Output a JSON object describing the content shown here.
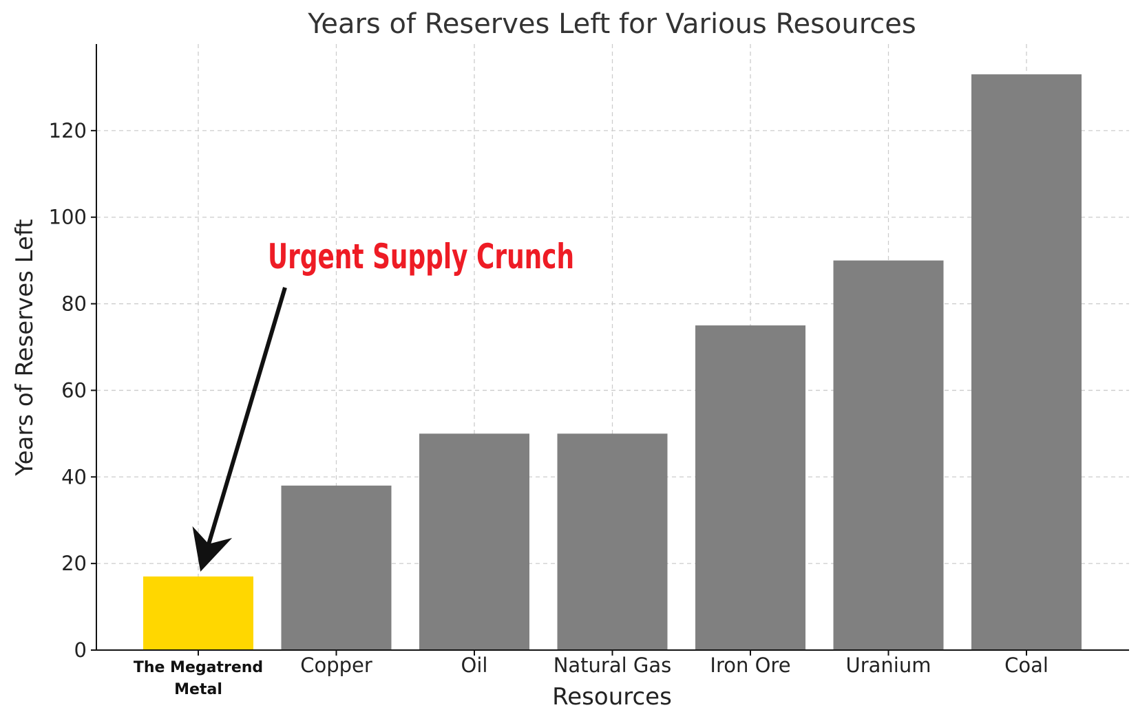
{
  "chart_data": {
    "type": "bar",
    "title": "Years of Reserves Left for Various Resources",
    "xlabel": "Resources",
    "ylabel": "Years of Reserves Left",
    "categories": [
      "The Megatrend Metal",
      "Copper",
      "Oil",
      "Natural Gas",
      "Iron Ore",
      "Uranium",
      "Coal"
    ],
    "category_label_lines": [
      [
        "The Megatrend",
        "Metal"
      ],
      [
        "Copper"
      ],
      [
        "Oil"
      ],
      [
        "Natural Gas"
      ],
      [
        "Iron Ore"
      ],
      [
        "Uranium"
      ],
      [
        "Coal"
      ]
    ],
    "values": [
      17,
      38,
      50,
      50,
      75,
      90,
      133
    ],
    "bar_colors": [
      "#ffd700",
      "#808080",
      "#808080",
      "#808080",
      "#808080",
      "#808080",
      "#808080"
    ],
    "ylim": [
      0,
      140
    ],
    "yticks": [
      0,
      20,
      40,
      60,
      80,
      100,
      120
    ],
    "grid": true,
    "annotation": {
      "text": "Urgent Supply Crunch",
      "color": "#ee1c25",
      "target_category": "The Megatrend Metal"
    }
  }
}
